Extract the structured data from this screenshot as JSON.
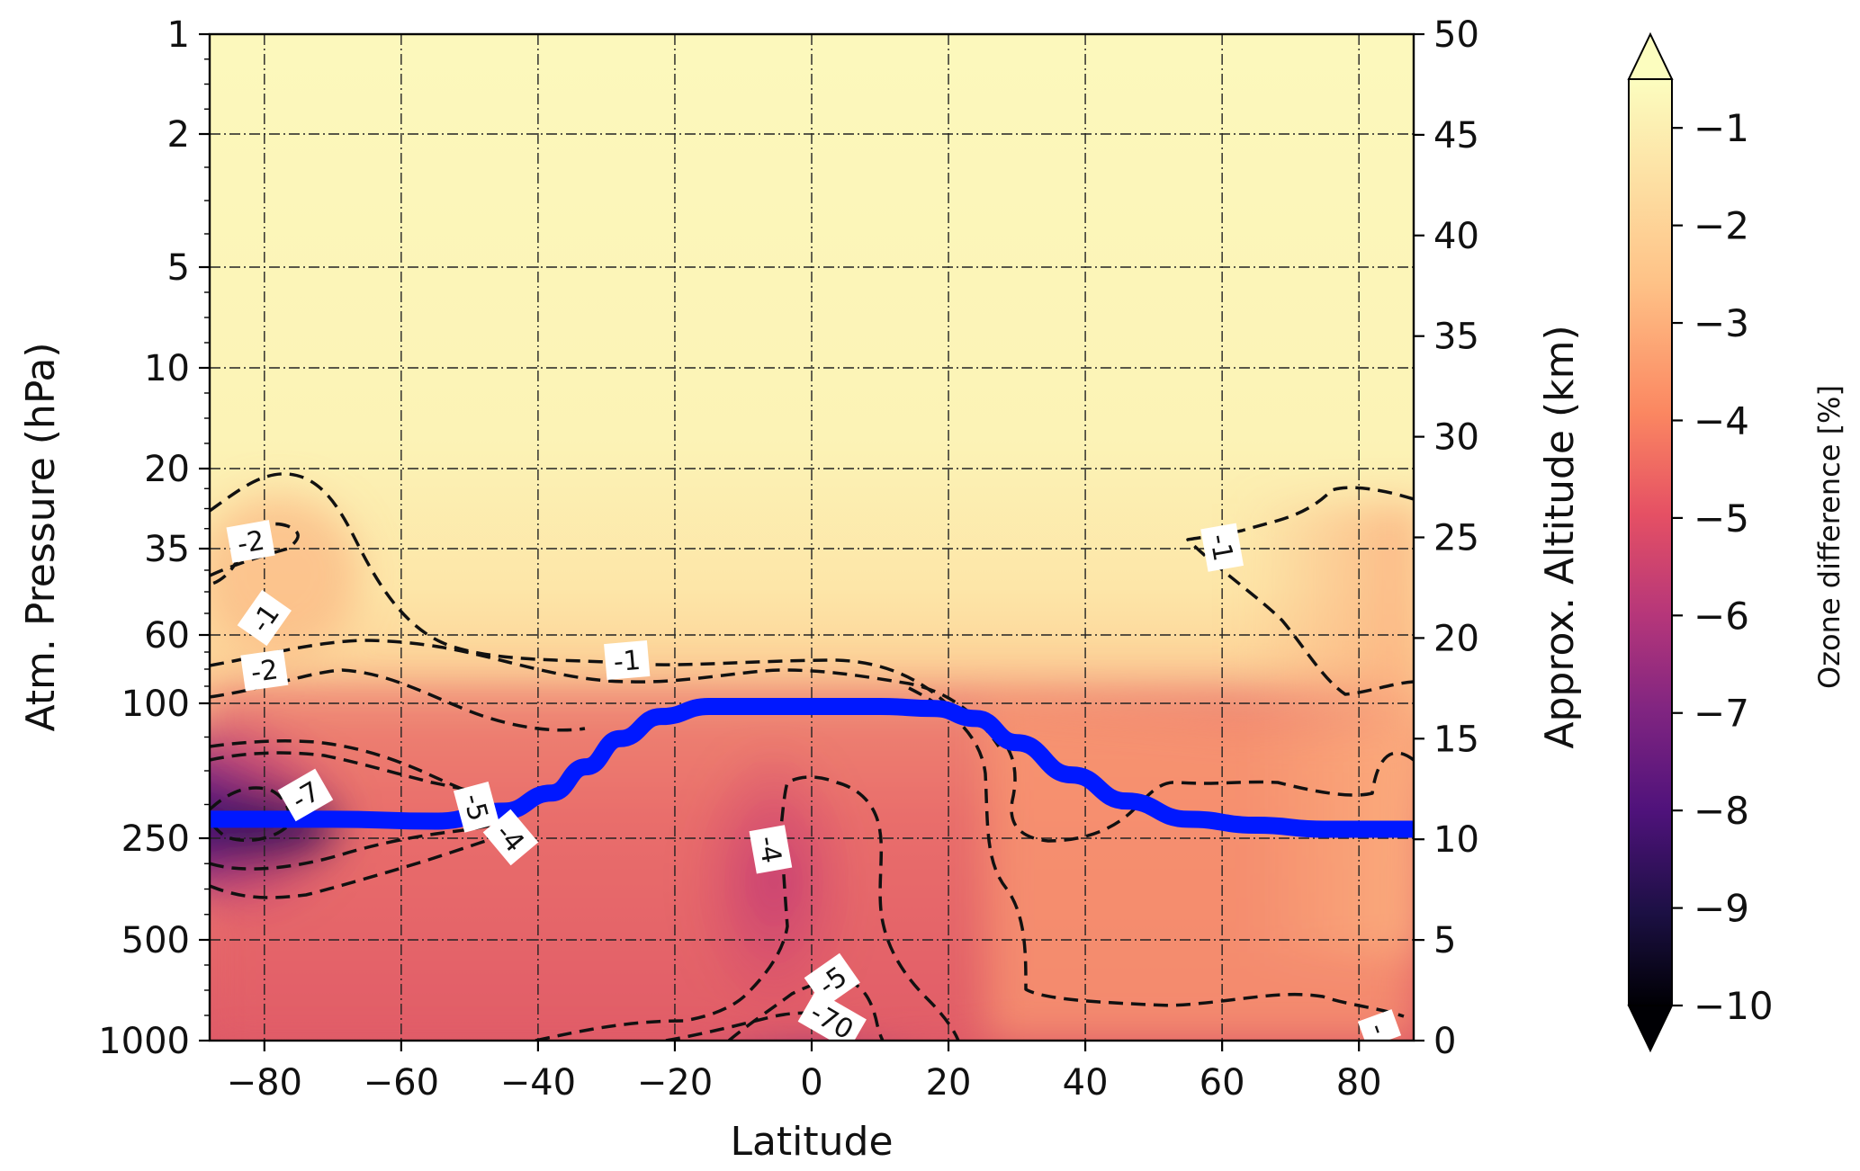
{
  "chart_data": {
    "type": "heatmap",
    "xlabel": "Latitude",
    "ylabel": "Atm. Pressure (hPa)",
    "ylabel_right": "Approx. Altitude (km)",
    "colorbar_label": "Ozone difference [%]",
    "colormap": "magma",
    "xlim": [
      -88,
      88
    ],
    "x_ticks": [
      -80,
      -60,
      -40,
      -20,
      0,
      20,
      40,
      60,
      80
    ],
    "x_tick_labels": [
      "−80",
      "−60",
      "−40",
      "−20",
      "0",
      "20",
      "40",
      "60",
      "80"
    ],
    "y_left_ticks": [
      1,
      2,
      5,
      10,
      20,
      35,
      60,
      100,
      250,
      500,
      1000
    ],
    "y_left_tick_labels": [
      "1",
      "2",
      "5",
      "10",
      "20",
      "35",
      "60",
      "100",
      "250",
      "500",
      "1000"
    ],
    "y_right_ticks": [
      0,
      5,
      10,
      15,
      20,
      25,
      30,
      35,
      40,
      45,
      50
    ],
    "y_right_tick_labels": [
      "0",
      "5",
      "10",
      "15",
      "20",
      "25",
      "30",
      "35",
      "40",
      "45",
      "50"
    ],
    "y_right_lim_km": [
      0,
      50
    ],
    "colorbar_ticks": [
      -1,
      -2,
      -3,
      -4,
      -5,
      -6,
      -7,
      -8,
      -9,
      -10
    ],
    "colorbar_tick_labels": [
      "−1",
      "−2",
      "−3",
      "−4",
      "−5",
      "−6",
      "−7",
      "−8",
      "−9",
      "−10"
    ],
    "colorbar_range": [
      -10,
      -0.5
    ],
    "colorbar_extend": "both",
    "grid": true,
    "tropopause_line": {
      "color": "#0018ff",
      "points": [
        {
          "lat": -88,
          "km": 11.0
        },
        {
          "lat": -70,
          "km": 11.0
        },
        {
          "lat": -55,
          "km": 10.9
        },
        {
          "lat": -45,
          "km": 11.4
        },
        {
          "lat": -38,
          "km": 12.3
        },
        {
          "lat": -33,
          "km": 13.6
        },
        {
          "lat": -28,
          "km": 15.0
        },
        {
          "lat": -22,
          "km": 16.1
        },
        {
          "lat": -15,
          "km": 16.6
        },
        {
          "lat": 0,
          "km": 16.6
        },
        {
          "lat": 10,
          "km": 16.6
        },
        {
          "lat": 18,
          "km": 16.5
        },
        {
          "lat": 24,
          "km": 16.0
        },
        {
          "lat": 30,
          "km": 14.8
        },
        {
          "lat": 38,
          "km": 13.2
        },
        {
          "lat": 46,
          "km": 11.9
        },
        {
          "lat": 55,
          "km": 11.0
        },
        {
          "lat": 65,
          "km": 10.7
        },
        {
          "lat": 75,
          "km": 10.5
        },
        {
          "lat": 88,
          "km": 10.5
        }
      ]
    },
    "contour_labels": [
      {
        "text": "-2",
        "lat": -82,
        "km": 24.8,
        "angle": -10
      },
      {
        "text": "-1",
        "lat": -80,
        "km": 21.0,
        "angle": -55
      },
      {
        "text": "-2",
        "lat": -80,
        "km": 18.4,
        "angle": -8
      },
      {
        "text": "-1",
        "lat": -27,
        "km": 18.9,
        "angle": -5
      },
      {
        "text": "-1",
        "lat": 60,
        "km": 24.5,
        "angle": 80
      },
      {
        "text": "-7",
        "lat": -74,
        "km": 12.2,
        "angle": -30
      },
      {
        "text": "-5",
        "lat": -49,
        "km": 11.6,
        "angle": 75
      },
      {
        "text": "-4",
        "lat": -44,
        "km": 10.1,
        "angle": 50
      },
      {
        "text": "-4",
        "lat": -6,
        "km": 9.5,
        "angle": 80
      },
      {
        "text": "-5",
        "lat": 3,
        "km": 3.0,
        "angle": -35
      },
      {
        "text": "-70",
        "lat": 3,
        "km": 1.0,
        "angle": 30
      },
      {
        "text": "-",
        "lat": 83,
        "km": 0.6,
        "angle": 70
      }
    ]
  }
}
